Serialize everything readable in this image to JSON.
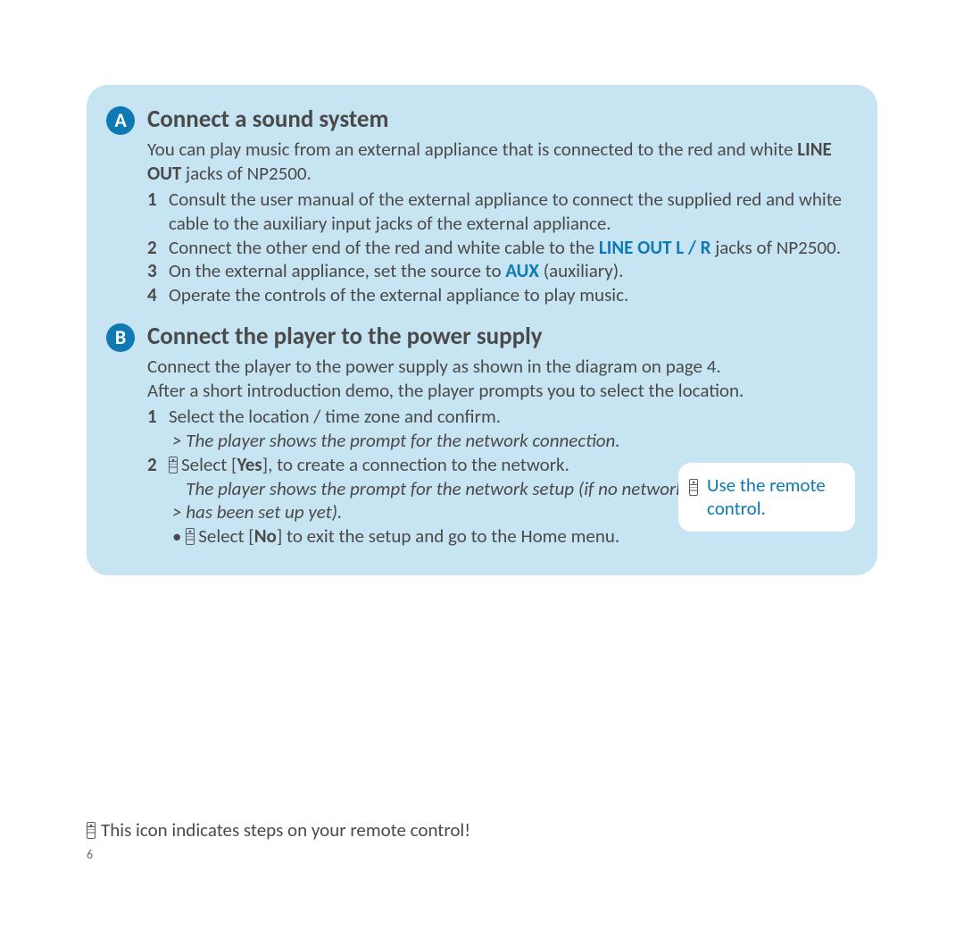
{
  "colors": {
    "panel_bg": "#c7e4f2",
    "accent": "#0e79b2",
    "text": "#4a4a4a",
    "page_bg": "#ffffff"
  },
  "sectionA": {
    "badge": "A",
    "title": "Connect a sound system",
    "intro_pre": "You can play music from an external appliance that is connected to the red and white ",
    "intro_bold": "LINE OUT",
    "intro_post": " jacks of NP2500.",
    "steps": {
      "s1": "Consult the user manual of the external appliance to connect the supplied red and white cable to the auxiliary input jacks of the external appliance.",
      "s2_pre": "Connect the other end of the red and white cable to the ",
      "s2_bold": "LINE OUT L / R",
      "s2_post": " jacks of NP2500.",
      "s3_pre": "On the external appliance, set the source to ",
      "s3_bold": "AUX",
      "s3_post": " (auxiliary).",
      "s4": "Operate the controls of the external appliance to play music."
    }
  },
  "sectionB": {
    "badge": "B",
    "title": "Connect the player to the power supply",
    "intro_line1": "Connect the player to the power supply as shown in the diagram on page 4.",
    "intro_line2": "After a short introduction demo, the player prompts you to select the location.",
    "steps": {
      "s1": "Select the location / time zone and confirm.",
      "s1_result": "The player shows the prompt for the network connection.",
      "s2_pre": "Select [",
      "s2_bold": "Yes",
      "s2_post": "], to create a connection to the network.",
      "s2_result": "The player shows the prompt for the network setup (if no network has been set up yet).",
      "s2_bullet_pre": "Select [",
      "s2_bullet_bold": "No",
      "s2_bullet_post": "] to exit the setup and go to the Home menu."
    }
  },
  "callout": {
    "text": "Use the remote control."
  },
  "footnote": "This icon indicates steps on your remote control!",
  "page_number": "6"
}
